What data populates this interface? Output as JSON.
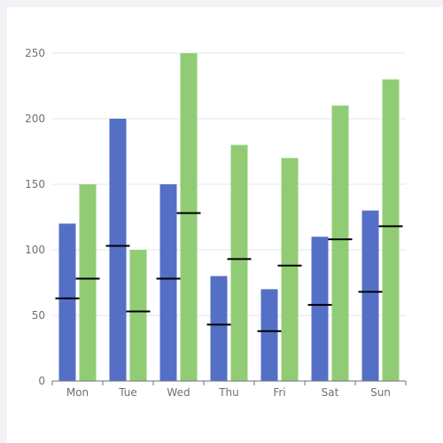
{
  "colors": {
    "series_a": "#5470c6",
    "series_b": "#91cc75",
    "marker": "#000000",
    "grid": "#e0e6f1",
    "axis": "#6e7079",
    "background": "#f3f3f7",
    "panel": "#ffffff"
  },
  "chart_data": {
    "type": "bar",
    "categories": [
      "Mon",
      "Tue",
      "Wed",
      "Thu",
      "Fri",
      "Sat",
      "Sun"
    ],
    "series": [
      {
        "values": [
          120,
          200,
          150,
          80,
          70,
          110,
          130
        ],
        "markers": [
          63,
          103,
          78,
          43,
          38,
          58,
          68
        ]
      },
      {
        "values": [
          150,
          100,
          250,
          180,
          170,
          210,
          230
        ],
        "markers": [
          78,
          53,
          128,
          93,
          88,
          108,
          118
        ]
      }
    ],
    "yticks": [
      0,
      50,
      100,
      150,
      200,
      250
    ],
    "ylim": [
      0,
      250
    ],
    "grid": true,
    "legend": "none"
  }
}
